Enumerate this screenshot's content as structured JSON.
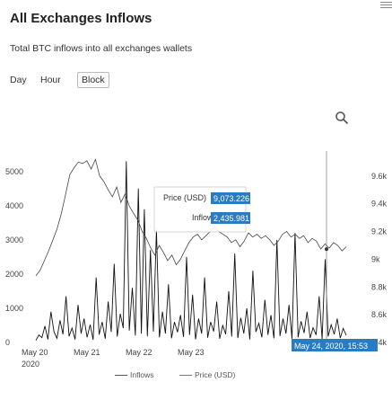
{
  "header": {
    "title": "All Exchanges Inflows",
    "subtitle": "Total BTC inflows into all exchanges wallets"
  },
  "controls": {
    "ranges": [
      "Day",
      "Hour",
      "Block"
    ],
    "selected": "Block"
  },
  "tooltip": {
    "price_label": "Price (USD)",
    "price_value": "9,073.226",
    "inflows_label": "Inflows",
    "inflows_value": "2,435.981",
    "date": "May 24, 2020, 15:53"
  },
  "legend": {
    "inflows": "Inflows",
    "price": "Price (USD)"
  },
  "chart_data": {
    "type": "line",
    "title": "All Exchanges Inflows",
    "subtitle": "Total BTC inflows into all exchanges wallets",
    "x_ticks": [
      "May 20",
      "May 21",
      "May 22",
      "May 23"
    ],
    "x_year": "2020",
    "x_range": [
      "2020-05-20",
      "2020-05-24"
    ],
    "y_left": {
      "ticks": [
        0,
        1000,
        2000,
        3000,
        4000,
        5000
      ],
      "range": [
        0,
        5600
      ]
    },
    "y_right": {
      "ticks": [
        8400,
        8600,
        8800,
        9000,
        9200,
        9400,
        9600
      ],
      "labels": [
        "8.4k",
        "8.6k",
        "8.8k",
        "9k",
        "9.2k",
        "9.4k",
        "9.6k"
      ],
      "range": [
        8400,
        9780
      ]
    },
    "series": [
      {
        "name": "Inflows",
        "axis": "left",
        "color": "#111111",
        "values": [
          60,
          220,
          140,
          480,
          90,
          900,
          310,
          120,
          650,
          240,
          1350,
          180,
          420,
          90,
          1100,
          260,
          700,
          150,
          520,
          80,
          1900,
          230,
          600,
          110,
          1200,
          310,
          2300,
          170,
          840,
          420,
          5300,
          350,
          1600,
          200,
          4500,
          260,
          3900,
          180,
          2700,
          320,
          3300,
          150,
          900,
          260,
          1700,
          120,
          600,
          300,
          800,
          160,
          2500,
          220,
          1400,
          90,
          700,
          260,
          1900,
          140,
          600,
          320,
          1200,
          110,
          500,
          240,
          1500,
          170,
          2600,
          130,
          720,
          260,
          1000,
          90,
          2100,
          310,
          560,
          150,
          1250,
          220,
          800,
          120,
          3000,
          190,
          700,
          260,
          1100,
          110,
          3200,
          150,
          620,
          280,
          900,
          130,
          430,
          220,
          1350,
          100,
          2435,
          180,
          520,
          240,
          700,
          130,
          410,
          210
        ]
      },
      {
        "name": "Price (USD)",
        "axis": "right",
        "color": "#444444",
        "values": [
          8880,
          8920,
          8990,
          9060,
          9140,
          9220,
          9330,
          9470,
          9610,
          9660,
          9700,
          9690,
          9710,
          9650,
          9720,
          9600,
          9560,
          9500,
          9450,
          9520,
          9410,
          9470,
          9380,
          9330,
          9280,
          9200,
          9150,
          9080,
          9030,
          9100,
          9050,
          8990,
          9030,
          8960,
          9000,
          9060,
          9120,
          9160,
          9180,
          9140,
          9170,
          9200,
          9230,
          9200,
          9180,
          9160,
          9120,
          9140,
          9090,
          9130,
          9190,
          9160,
          9180,
          9150,
          9170,
          9140,
          9100,
          9130,
          9180,
          9200,
          9160,
          9180,
          9150,
          9170,
          9120,
          9150,
          9130,
          9073,
          9110,
          9080,
          9120,
          9100,
          9060,
          9090
        ]
      }
    ],
    "legend_position": "bottom",
    "grid": false
  }
}
